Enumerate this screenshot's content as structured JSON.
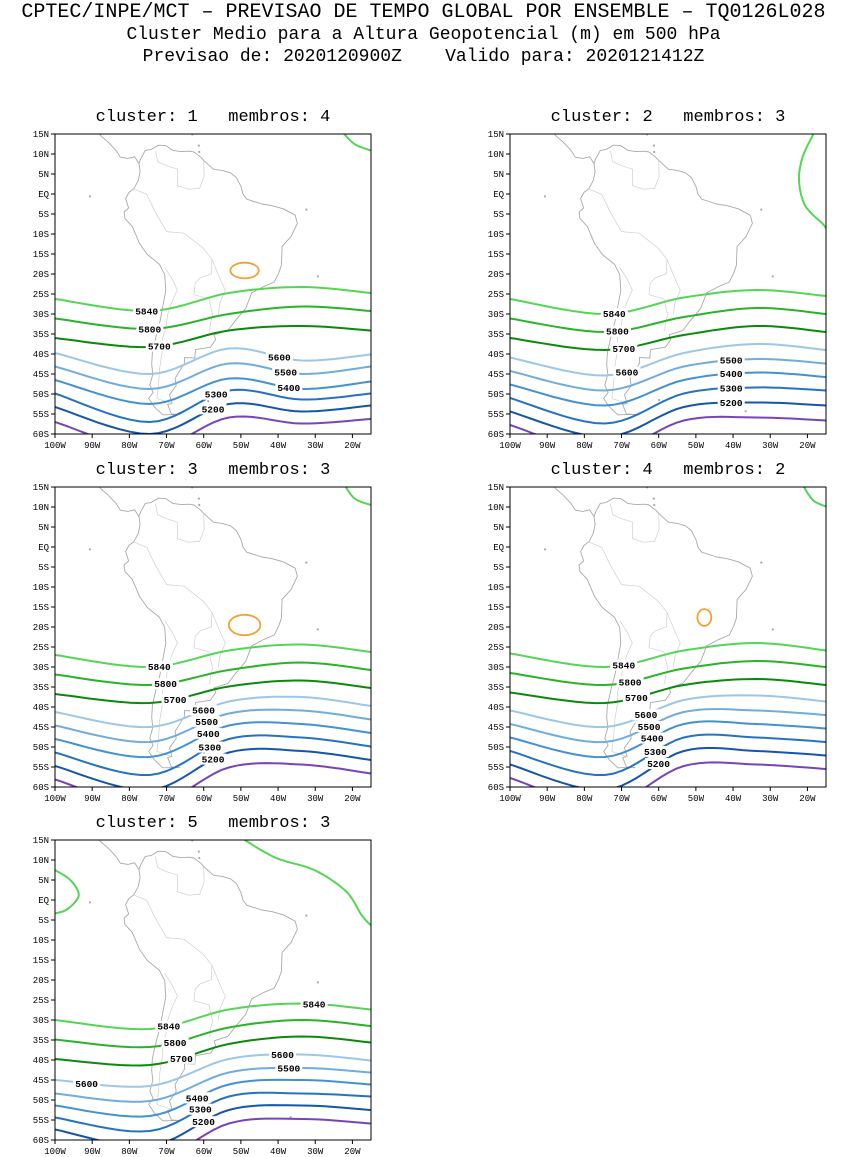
{
  "header": {
    "line1": "CPTEC/INPE/MCT – PREVISAO DE TEMPO GLOBAL POR ENSEMBLE – TQ0126L028",
    "line2": "Cluster Medio para a Altura Geopotencial (m) em 500 hPa",
    "line3": "Previsao de: 2020120900Z    Valido para: 2020121412Z"
  },
  "axes": {
    "x_ticks": [
      {
        "label": "100W",
        "lon": -100
      },
      {
        "label": "90W",
        "lon": -90
      },
      {
        "label": "80W",
        "lon": -80
      },
      {
        "label": "70W",
        "lon": -70
      },
      {
        "label": "60W",
        "lon": -60
      },
      {
        "label": "50W",
        "lon": -50
      },
      {
        "label": "40W",
        "lon": -40
      },
      {
        "label": "30W",
        "lon": -30
      },
      {
        "label": "20W",
        "lon": -20
      }
    ],
    "y_ticks": [
      {
        "label": "15N",
        "lat": 15
      },
      {
        "label": "10N",
        "lat": 10
      },
      {
        "label": "5N",
        "lat": 5
      },
      {
        "label": "EQ",
        "lat": 0
      },
      {
        "label": "5S",
        "lat": -5
      },
      {
        "label": "10S",
        "lat": -10
      },
      {
        "label": "15S",
        "lat": -15
      },
      {
        "label": "20S",
        "lat": -20
      },
      {
        "label": "25S",
        "lat": -25
      },
      {
        "label": "30S",
        "lat": -30
      },
      {
        "label": "35S",
        "lat": -35
      },
      {
        "label": "40S",
        "lat": -40
      },
      {
        "label": "45S",
        "lat": -45
      },
      {
        "label": "50S",
        "lat": -50
      },
      {
        "label": "55S",
        "lat": -55
      },
      {
        "label": "60S",
        "lat": -60
      }
    ],
    "lon_range": [
      -100,
      -15
    ],
    "lat_range": [
      15,
      -60
    ]
  },
  "colors": {
    "level_5840": "#54d654",
    "level_5800": "#28b428",
    "level_5700": "#0a8a0a",
    "level_5600": "#9cc7e6",
    "level_5500": "#6facdf",
    "level_5400": "#4292d2",
    "level_5300": "#2473c3",
    "level_5200": "#1356ab",
    "level_low": "#7744bb",
    "closed_high": "#f2a133",
    "coastline": "#a9a9a9",
    "border": "#cfcfcf",
    "frame": "#000000"
  },
  "chart_data": [
    {
      "type": "contour-map",
      "title": "cluster: 1   membros: 4",
      "cluster": 1,
      "membros": 4,
      "contours": [
        {
          "value": "5840",
          "color_key": "level_5840",
          "y_at": [
            0.55,
            0.59,
            0.53,
            0.51,
            0.53
          ],
          "label_x": [
            0.29
          ]
        },
        {
          "value": "5800",
          "color_key": "level_5800",
          "y_at": [
            0.615,
            0.65,
            0.6,
            0.575,
            0.59
          ],
          "label_x": [
            0.3
          ]
        },
        {
          "value": "5700",
          "color_key": "level_5700",
          "y_at": [
            0.68,
            0.71,
            0.655,
            0.64,
            0.655
          ],
          "label_x": [
            0.33
          ]
        },
        {
          "value": "5600",
          "color_key": "level_5600",
          "y_at": [
            0.73,
            0.8,
            0.715,
            0.755,
            0.735
          ],
          "label_x": [
            0.71
          ]
        },
        {
          "value": "5500",
          "color_key": "level_5500",
          "y_at": [
            0.775,
            0.85,
            0.765,
            0.8,
            0.775
          ],
          "label_x": [
            0.73
          ]
        },
        {
          "value": "5400",
          "color_key": "level_5400",
          "y_at": [
            0.82,
            0.9,
            0.815,
            0.85,
            0.825
          ],
          "label_x": [
            0.74
          ]
        },
        {
          "value": "5300",
          "color_key": "level_5300",
          "y_at": [
            0.865,
            0.96,
            0.855,
            0.885,
            0.865
          ],
          "label_x": [
            0.51
          ]
        },
        {
          "value": "5200",
          "color_key": "level_5200",
          "y_at": [
            0.91,
            1.0,
            0.9,
            0.925,
            0.905
          ],
          "label_x": [
            0.5
          ]
        },
        {
          "value": "",
          "color_key": "level_low",
          "y_at": [
            0.96,
            1.05,
            0.945,
            0.965,
            0.95
          ],
          "label_x": []
        }
      ],
      "closed_contours": [
        {
          "x": 0.6,
          "y": 0.455,
          "rx": 0.045,
          "ry": 0.026,
          "color_key": "closed_high"
        }
      ],
      "arcs": [
        {
          "color_key": "level_5840",
          "pts": [
            [
              0.915,
              0
            ],
            [
              0.95,
              0.035
            ],
            [
              1.0,
              0.055
            ]
          ]
        }
      ]
    },
    {
      "type": "contour-map",
      "title": "cluster: 2   membros: 3",
      "cluster": 2,
      "membros": 3,
      "contours": [
        {
          "value": "5840",
          "color_key": "level_5840",
          "y_at": [
            0.55,
            0.6,
            0.545,
            0.52,
            0.54
          ],
          "label_x": [
            0.33
          ]
        },
        {
          "value": "5800",
          "color_key": "level_5800",
          "y_at": [
            0.615,
            0.66,
            0.61,
            0.58,
            0.6
          ],
          "label_x": [
            0.34
          ]
        },
        {
          "value": "5700",
          "color_key": "level_5700",
          "y_at": [
            0.68,
            0.72,
            0.67,
            0.64,
            0.66
          ],
          "label_x": [
            0.36
          ]
        },
        {
          "value": "5600",
          "color_key": "level_5600",
          "y_at": [
            0.745,
            0.805,
            0.73,
            0.7,
            0.72
          ],
          "label_x": [
            0.37
          ]
        },
        {
          "value": "5500",
          "color_key": "level_5500",
          "y_at": [
            0.79,
            0.855,
            0.775,
            0.75,
            0.765
          ],
          "label_x": [
            0.7
          ]
        },
        {
          "value": "5400",
          "color_key": "level_5400",
          "y_at": [
            0.835,
            0.905,
            0.82,
            0.795,
            0.81
          ],
          "label_x": [
            0.7
          ]
        },
        {
          "value": "5300",
          "color_key": "level_5300",
          "y_at": [
            0.88,
            0.965,
            0.865,
            0.845,
            0.855
          ],
          "label_x": [
            0.7
          ]
        },
        {
          "value": "5200",
          "color_key": "level_5200",
          "y_at": [
            0.925,
            1.01,
            0.91,
            0.895,
            0.905
          ],
          "label_x": [
            0.7
          ]
        },
        {
          "value": "",
          "color_key": "level_low",
          "y_at": [
            0.97,
            1.06,
            0.955,
            0.945,
            0.955
          ],
          "label_x": []
        }
      ],
      "closed_contours": [],
      "arcs": [
        {
          "color_key": "level_5840",
          "pts": [
            [
              0.96,
              0
            ],
            [
              0.925,
              0.08
            ],
            [
              0.915,
              0.16
            ],
            [
              0.935,
              0.24
            ],
            [
              0.99,
              0.3
            ],
            [
              1.0,
              0.315
            ]
          ]
        }
      ]
    },
    {
      "type": "contour-map",
      "title": "cluster: 3   membros: 3",
      "cluster": 3,
      "membros": 3,
      "contours": [
        {
          "value": "5840",
          "color_key": "level_5840",
          "y_at": [
            0.56,
            0.6,
            0.545,
            0.525,
            0.55
          ],
          "label_x": [
            0.33
          ]
        },
        {
          "value": "5800",
          "color_key": "level_5800",
          "y_at": [
            0.625,
            0.66,
            0.61,
            0.585,
            0.61
          ],
          "label_x": [
            0.35
          ]
        },
        {
          "value": "5700",
          "color_key": "level_5700",
          "y_at": [
            0.69,
            0.72,
            0.665,
            0.645,
            0.67
          ],
          "label_x": [
            0.38
          ]
        },
        {
          "value": "5600",
          "color_key": "level_5600",
          "y_at": [
            0.75,
            0.8,
            0.715,
            0.7,
            0.73
          ],
          "label_x": [
            0.47
          ]
        },
        {
          "value": "5500",
          "color_key": "level_5500",
          "y_at": [
            0.795,
            0.85,
            0.755,
            0.745,
            0.775
          ],
          "label_x": [
            0.48
          ]
        },
        {
          "value": "5400",
          "color_key": "level_5400",
          "y_at": [
            0.84,
            0.9,
            0.795,
            0.79,
            0.82
          ],
          "label_x": [
            0.485
          ]
        },
        {
          "value": "5300",
          "color_key": "level_5300",
          "y_at": [
            0.885,
            0.96,
            0.84,
            0.835,
            0.865
          ],
          "label_x": [
            0.49
          ]
        },
        {
          "value": "5200",
          "color_key": "level_5200",
          "y_at": [
            0.93,
            1.01,
            0.885,
            0.88,
            0.91
          ],
          "label_x": [
            0.5
          ]
        },
        {
          "value": "",
          "color_key": "level_low",
          "y_at": [
            0.975,
            1.06,
            0.935,
            0.925,
            0.955
          ],
          "label_x": []
        }
      ],
      "closed_contours": [
        {
          "x": 0.6,
          "y": 0.46,
          "rx": 0.05,
          "ry": 0.034,
          "color_key": "closed_high"
        }
      ],
      "arcs": [
        {
          "color_key": "level_5840",
          "pts": [
            [
              0.92,
              0
            ],
            [
              0.95,
              0.04
            ],
            [
              1.0,
              0.06
            ]
          ]
        }
      ]
    },
    {
      "type": "contour-map",
      "title": "cluster: 4   membros: 2",
      "cluster": 4,
      "membros": 2,
      "contours": [
        {
          "value": "5840",
          "color_key": "level_5840",
          "y_at": [
            0.555,
            0.6,
            0.545,
            0.52,
            0.545
          ],
          "label_x": [
            0.36
          ]
        },
        {
          "value": "5800",
          "color_key": "level_5800",
          "y_at": [
            0.62,
            0.66,
            0.605,
            0.58,
            0.6
          ],
          "label_x": [
            0.38
          ]
        },
        {
          "value": "5700",
          "color_key": "level_5700",
          "y_at": [
            0.685,
            0.72,
            0.66,
            0.64,
            0.66
          ],
          "label_x": [
            0.4
          ]
        },
        {
          "value": "5600",
          "color_key": "level_5600",
          "y_at": [
            0.745,
            0.8,
            0.71,
            0.695,
            0.715
          ],
          "label_x": [
            0.43
          ]
        },
        {
          "value": "5500",
          "color_key": "level_5500",
          "y_at": [
            0.79,
            0.85,
            0.75,
            0.745,
            0.76
          ],
          "label_x": [
            0.44
          ]
        },
        {
          "value": "5400",
          "color_key": "level_5400",
          "y_at": [
            0.835,
            0.9,
            0.79,
            0.79,
            0.805
          ],
          "label_x": [
            0.45
          ]
        },
        {
          "value": "5300",
          "color_key": "level_5300",
          "y_at": [
            0.88,
            0.96,
            0.835,
            0.835,
            0.85
          ],
          "label_x": [
            0.46
          ]
        },
        {
          "value": "5200",
          "color_key": "level_5200",
          "y_at": [
            0.925,
            1.01,
            0.88,
            0.88,
            0.895
          ],
          "label_x": [
            0.47
          ]
        },
        {
          "value": "",
          "color_key": "level_low",
          "y_at": [
            0.97,
            1.06,
            0.93,
            0.925,
            0.94
          ],
          "label_x": []
        }
      ],
      "closed_contours": [
        {
          "x": 0.615,
          "y": 0.435,
          "rx": 0.022,
          "ry": 0.028,
          "color_key": "closed_high"
        }
      ],
      "arcs": [
        {
          "color_key": "level_5840",
          "pts": [
            [
              0.93,
              0
            ],
            [
              0.96,
              0.045
            ],
            [
              1.0,
              0.065
            ]
          ]
        }
      ]
    },
    {
      "type": "contour-map",
      "title": "cluster: 5   membros: 3",
      "cluster": 5,
      "membros": 3,
      "contours": [
        {
          "value": "5840",
          "color_key": "level_5840",
          "y_at": [
            0.6,
            0.63,
            0.565,
            0.545,
            0.565
          ],
          "label_x": [
            0.36,
            0.82
          ]
        },
        {
          "value": "5800",
          "color_key": "level_5800",
          "y_at": [
            0.665,
            0.69,
            0.625,
            0.6,
            0.62
          ],
          "label_x": [
            0.38
          ]
        },
        {
          "value": "5700",
          "color_key": "level_5700",
          "y_at": [
            0.73,
            0.75,
            0.68,
            0.655,
            0.675
          ],
          "label_x": [
            0.4
          ]
        },
        {
          "value": "5600",
          "color_key": "level_5600",
          "y_at": [
            0.8,
            0.82,
            0.73,
            0.715,
            0.735
          ],
          "label_x": [
            0.1,
            0.72
          ]
        },
        {
          "value": "5500",
          "color_key": "level_5500",
          "y_at": [
            0.845,
            0.87,
            0.775,
            0.76,
            0.775
          ],
          "label_x": [
            0.74
          ]
        },
        {
          "value": "5400",
          "color_key": "level_5400",
          "y_at": [
            0.885,
            0.92,
            0.815,
            0.8,
            0.815
          ],
          "label_x": [
            0.45
          ]
        },
        {
          "value": "5300",
          "color_key": "level_5300",
          "y_at": [
            0.925,
            0.97,
            0.855,
            0.845,
            0.855
          ],
          "label_x": [
            0.46
          ]
        },
        {
          "value": "5200",
          "color_key": "level_5200",
          "y_at": [
            0.965,
            1.02,
            0.9,
            0.885,
            0.9
          ],
          "label_x": [
            0.47
          ]
        },
        {
          "value": "",
          "color_key": "level_low",
          "y_at": [
            1.005,
            1.07,
            0.945,
            0.93,
            0.945
          ],
          "label_x": []
        }
      ],
      "closed_contours": [],
      "arcs": [
        {
          "color_key": "level_5840",
          "pts": [
            [
              0,
              0.1
            ],
            [
              0.05,
              0.135
            ],
            [
              0.075,
              0.185
            ],
            [
              0.04,
              0.23
            ],
            [
              0,
              0.245
            ]
          ]
        },
        {
          "color_key": "level_5840",
          "pts": [
            [
              0.6,
              0
            ],
            [
              0.7,
              0.06
            ],
            [
              0.82,
              0.1
            ],
            [
              0.92,
              0.17
            ],
            [
              0.97,
              0.25
            ],
            [
              1.0,
              0.285
            ]
          ]
        }
      ]
    }
  ]
}
